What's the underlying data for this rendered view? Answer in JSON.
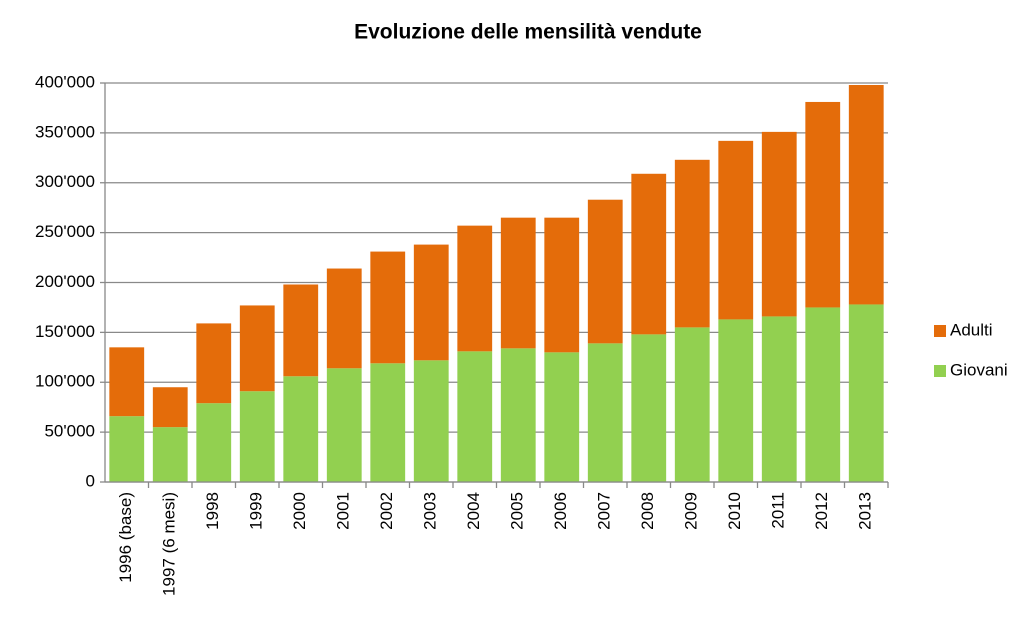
{
  "chart_data": {
    "type": "stacked_bar",
    "title": "Evoluzione delle mensilità vendute",
    "categories": [
      "1996 (base)",
      "1997 (6 mesi)",
      "1998",
      "1999",
      "2000",
      "2001",
      "2002",
      "2003",
      "2004",
      "2005",
      "2006",
      "2007",
      "2008",
      "2009",
      "2010",
      "2011",
      "2012",
      "2013"
    ],
    "series": [
      {
        "name": "Giovani",
        "color": "#92d050",
        "values": [
          66000,
          55000,
          79000,
          91000,
          106000,
          114000,
          119000,
          122000,
          131000,
          134000,
          130000,
          139000,
          148000,
          155000,
          163000,
          166000,
          175000,
          178000
        ]
      },
      {
        "name": "Adulti",
        "color": "#e46c0a",
        "values": [
          69000,
          40000,
          80000,
          86000,
          92000,
          100000,
          112000,
          116000,
          126000,
          131000,
          135000,
          144000,
          161000,
          168000,
          179000,
          185000,
          206000,
          220000
        ]
      }
    ],
    "ylim": [
      0,
      400000
    ],
    "yticks": [
      0,
      {
        "value": 50000,
        "label": "50'000"
      },
      {
        "value": 100000,
        "label": "100'000"
      },
      {
        "value": 150000,
        "label": "150'000"
      },
      {
        "value": 200000,
        "label": "200'000"
      },
      {
        "value": 250000,
        "label": "250'000"
      },
      {
        "value": 300000,
        "label": "300'000"
      },
      {
        "value": 350000,
        "label": "350'000"
      },
      {
        "value": 400000,
        "label": "400'000"
      }
    ],
    "grid": true,
    "legend": "right"
  }
}
